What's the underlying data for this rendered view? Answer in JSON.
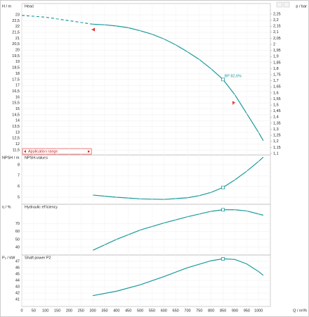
{
  "chart_data": [
    {
      "type": "line",
      "title": "Head",
      "ylabel": "H / m",
      "y2label": "p / bar",
      "annotation": "Application range",
      "xlim": [
        0,
        1050
      ],
      "ylim": [
        11.08,
        23.96
      ],
      "y2lim": [
        1.088,
        2.337
      ],
      "grid": true,
      "color": "#1a9a9a",
      "yticks": [
        23,
        {
          "value": 22.5,
          "label": "22,5"
        },
        22,
        {
          "value": 21.5,
          "label": "21,5"
        },
        21,
        {
          "value": 20.5,
          "label": "20,5"
        },
        20,
        {
          "value": 19.5,
          "label": "19,5"
        },
        19,
        {
          "value": 18.5,
          "label": "18,5"
        },
        18,
        {
          "value": 17.5,
          "label": "17,5"
        },
        17,
        {
          "value": 16.5,
          "label": "16,5"
        },
        16,
        {
          "value": 15.5,
          "label": "15,5"
        },
        15,
        {
          "value": 14.5,
          "label": "14,5"
        },
        14,
        {
          "value": 13.5,
          "label": "13,5"
        },
        13,
        {
          "value": 12.5,
          "label": "12,5"
        },
        12,
        {
          "value": 11.5,
          "label": "11,5"
        }
      ],
      "y2ticks": [
        {
          "value": 2.25,
          "label": "2,25"
        },
        {
          "value": 2.2,
          "label": "2,2"
        },
        {
          "value": 2.15,
          "label": "2,15"
        },
        {
          "value": 2.1,
          "label": "2,1"
        },
        {
          "value": 2.05,
          "label": "2,05"
        },
        2,
        {
          "value": 1.95,
          "label": "1,95"
        },
        {
          "value": 1.9,
          "label": "1,9"
        },
        {
          "value": 1.85,
          "label": "1,85"
        },
        {
          "value": 1.8,
          "label": "1,8"
        },
        {
          "value": 1.75,
          "label": "1,75"
        },
        {
          "value": 1.7,
          "label": "1,7"
        },
        {
          "value": 1.65,
          "label": "1,65"
        },
        {
          "value": 1.6,
          "label": "1,6"
        },
        {
          "value": 1.55,
          "label": "1,55"
        },
        {
          "value": 1.5,
          "label": "1,5"
        },
        {
          "value": 1.45,
          "label": "1,45"
        },
        {
          "value": 1.4,
          "label": "1,4"
        },
        {
          "value": 1.35,
          "label": "1,35"
        },
        {
          "value": 1.3,
          "label": "1,3"
        },
        {
          "value": 1.25,
          "label": "1,25"
        },
        {
          "value": 1.2,
          "label": "1,2"
        },
        {
          "value": 1.15,
          "label": "1,15"
        },
        {
          "value": 1.1,
          "label": "1,1"
        }
      ],
      "series": [
        {
          "color": "#1a9a9a",
          "dashed": true,
          "x": [
            0,
            100,
            200,
            300
          ],
          "values": [
            22.95,
            22.8,
            22.5,
            22.2
          ]
        },
        {
          "color": "#1a9a9a",
          "x": [
            300,
            350,
            400,
            450,
            500,
            550,
            600,
            650,
            700,
            750,
            800,
            850,
            900,
            950,
            1000,
            1020
          ],
          "values": [
            22.2,
            22.15,
            22.05,
            21.9,
            21.65,
            21.35,
            20.95,
            20.45,
            19.85,
            19.2,
            18.4,
            17.5,
            16.2,
            14.6,
            13.0,
            12.3
          ]
        }
      ],
      "operating_point": {
        "x": 850,
        "y": 17.5,
        "label": "BP 82,6%"
      }
    },
    {
      "type": "line",
      "title": "NPSH-values",
      "ylabel": "NPSH / m",
      "xlim": [
        0,
        1050
      ],
      "ylim": [
        4.35,
        8.9
      ],
      "grid": true,
      "yticks": [
        5,
        6,
        7,
        8
      ],
      "series": [
        {
          "color": "#1a9a9a",
          "x": [
            300,
            400,
            500,
            600,
            700,
            750,
            800,
            850,
            900,
            950,
            1000,
            1020
          ],
          "values": [
            5.2,
            5.0,
            4.85,
            4.8,
            4.95,
            5.15,
            5.45,
            5.9,
            6.6,
            7.4,
            8.3,
            8.7
          ]
        }
      ],
      "operating_point": {
        "x": 850,
        "y": 5.9
      }
    },
    {
      "type": "line",
      "title": "Hydraulic efficiency",
      "ylabel": "η / %",
      "xlim": [
        0,
        1050
      ],
      "ylim": [
        30,
        95
      ],
      "grid": true,
      "yticks": [
        40,
        50,
        60,
        70
      ],
      "series": [
        {
          "color": "#1a9a9a",
          "x": [
            300,
            400,
            500,
            600,
            700,
            800,
            850,
            900,
            950,
            1020
          ],
          "values": [
            36,
            50,
            62,
            71,
            79,
            86,
            88,
            88,
            86.5,
            81
          ]
        }
      ],
      "operating_point": {
        "x": 850,
        "y": 88
      }
    },
    {
      "type": "line",
      "title": "Shaft power P2",
      "ylabel": "P₂ / kW",
      "xlabel": "Q / m³/h",
      "xlim": [
        0,
        1050
      ],
      "ylim": [
        39.9,
        48
      ],
      "grid": true,
      "yticks": [
        41,
        42,
        43,
        44,
        45,
        46,
        47
      ],
      "xticks": [
        0,
        50,
        100,
        150,
        200,
        250,
        300,
        350,
        400,
        450,
        500,
        550,
        600,
        650,
        700,
        750,
        800,
        850,
        900,
        950,
        1000
      ],
      "series": [
        {
          "color": "#1a9a9a",
          "x": [
            300,
            400,
            500,
            600,
            700,
            800,
            850,
            900,
            950,
            1000,
            1020
          ],
          "values": [
            41.6,
            42.3,
            43.3,
            44.6,
            46,
            47.1,
            47.4,
            47.3,
            46.6,
            45.4,
            44.8
          ]
        }
      ],
      "operating_point": {
        "x": 850,
        "y": 47.4
      }
    }
  ]
}
